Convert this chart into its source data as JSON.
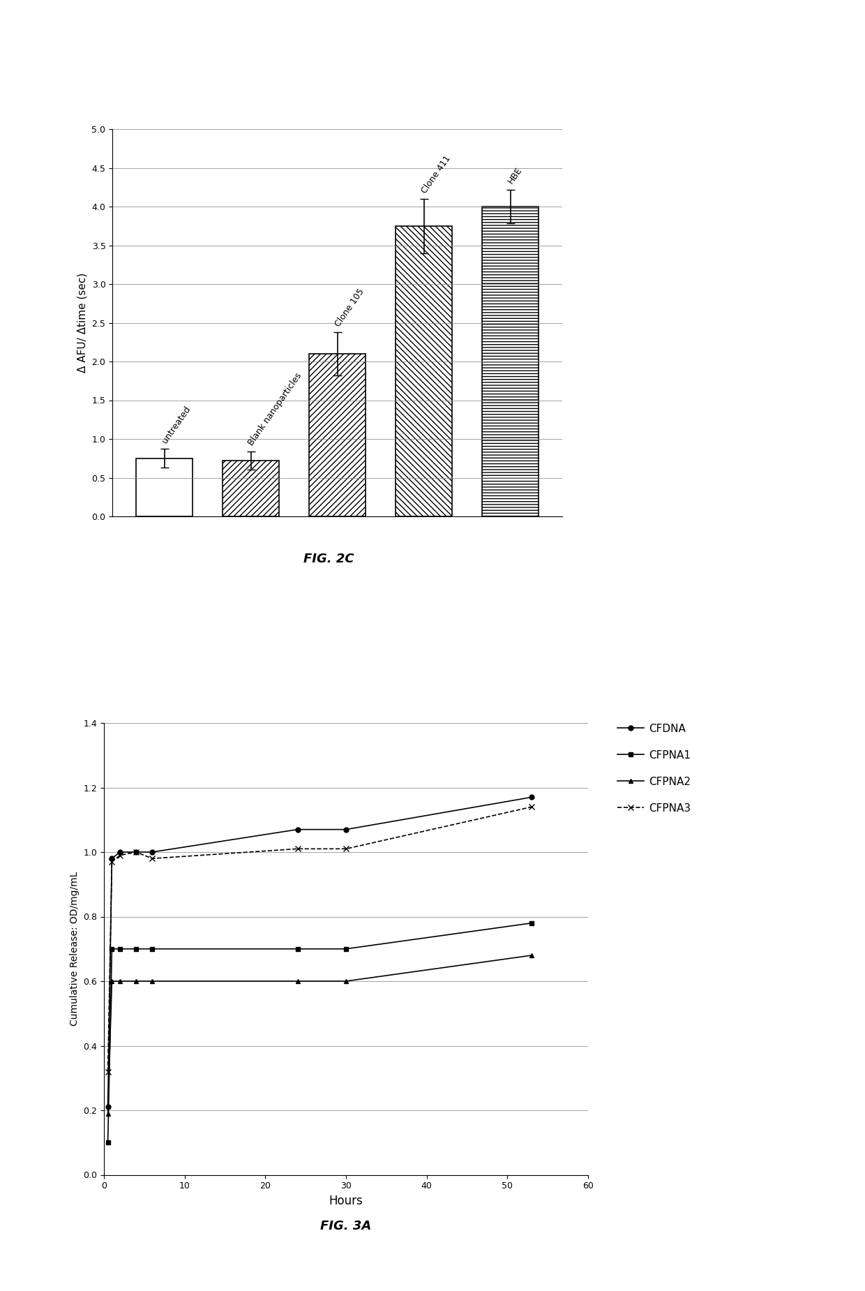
{
  "fig2c": {
    "categories": [
      "untreated",
      "Blank nanoparticles",
      "Clone 105",
      "Clone 411",
      "HBE"
    ],
    "values": [
      0.75,
      0.72,
      2.1,
      3.75,
      4.0
    ],
    "errors": [
      0.12,
      0.12,
      0.28,
      0.35,
      0.22
    ],
    "hatches": [
      "",
      "////",
      "////",
      "\\\\\\\\",
      "----"
    ],
    "ylabel": "Δ AFU/ Δtime (sec)",
    "ylim": [
      0,
      5
    ],
    "yticks": [
      0,
      0.5,
      1,
      1.5,
      2,
      2.5,
      3,
      3.5,
      4,
      4.5,
      5
    ],
    "fig_label": "FIG. 2C"
  },
  "fig3a": {
    "CFDNA_x": [
      0.5,
      1,
      2,
      4,
      6,
      24,
      30,
      53
    ],
    "CFDNA_y": [
      0.21,
      0.98,
      1.0,
      1.0,
      1.0,
      1.07,
      1.07,
      1.17
    ],
    "CFPNA1_x": [
      0.5,
      1,
      2,
      4,
      6,
      24,
      30,
      53
    ],
    "CFPNA1_y": [
      0.1,
      0.7,
      0.7,
      0.7,
      0.7,
      0.7,
      0.7,
      0.78
    ],
    "CFPNA2_x": [
      0.5,
      1,
      2,
      4,
      6,
      24,
      30,
      53
    ],
    "CFPNA2_y": [
      0.19,
      0.6,
      0.6,
      0.6,
      0.6,
      0.6,
      0.6,
      0.68
    ],
    "CFPNA3_x": [
      0.5,
      1,
      2,
      4,
      6,
      24,
      30,
      53
    ],
    "CFPNA3_y": [
      0.32,
      0.97,
      0.99,
      1.0,
      0.98,
      1.01,
      1.01,
      1.14
    ],
    "xlabel": "Hours",
    "ylabel": "Cumulative Release: OD/mg/mL",
    "xlim": [
      0,
      60
    ],
    "ylim": [
      0,
      1.4
    ],
    "yticks": [
      0,
      0.2,
      0.4,
      0.6,
      0.8,
      1.0,
      1.2,
      1.4
    ],
    "xticks": [
      0,
      10,
      20,
      30,
      40,
      50,
      60
    ],
    "fig_label": "FIG. 3A",
    "legend": [
      "CFDNA",
      "CFPNA1",
      "CFPNA2",
      "CFPNA3"
    ]
  }
}
